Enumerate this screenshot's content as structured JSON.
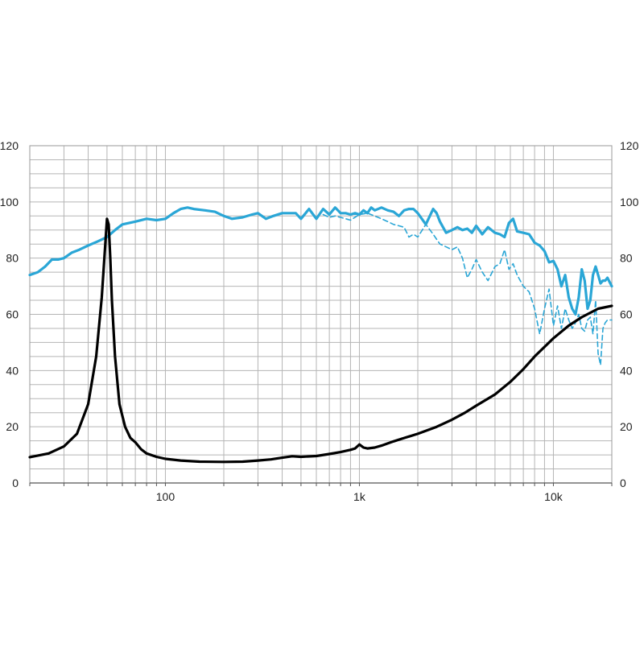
{
  "chart_data": {
    "type": "line",
    "x_scale": "log",
    "xlim": [
      20,
      20000
    ],
    "ylim_left": [
      0,
      120
    ],
    "ylim_right": [
      0,
      120
    ],
    "grid": true,
    "x_ticks": [
      100,
      1000,
      10000
    ],
    "x_tick_labels": [
      "100",
      "1k",
      "10k"
    ],
    "y_ticks": [
      0,
      20,
      40,
      60,
      80,
      100,
      120
    ],
    "y_tick_labels": [
      "0",
      "20",
      "40",
      "60",
      "80",
      "100",
      "120"
    ],
    "colors": {
      "spl": "#2aa6d6",
      "impedance": "#000000",
      "grid": "#b5b5b5"
    },
    "series": [
      {
        "key": "spl_on_axis",
        "style": "solid",
        "color": "#2aa6d6",
        "x": [
          20,
          22,
          24,
          26,
          28,
          30,
          33,
          36,
          40,
          45,
          50,
          55,
          60,
          70,
          80,
          90,
          100,
          110,
          120,
          130,
          140,
          160,
          180,
          200,
          220,
          250,
          280,
          300,
          330,
          360,
          400,
          430,
          470,
          500,
          550,
          600,
          650,
          700,
          750,
          800,
          850,
          900,
          950,
          1000,
          1050,
          1100,
          1150,
          1200,
          1300,
          1400,
          1500,
          1600,
          1700,
          1800,
          1900,
          2000,
          2200,
          2400,
          2500,
          2600,
          2800,
          3000,
          3200,
          3400,
          3600,
          3800,
          4000,
          4300,
          4600,
          5000,
          5300,
          5600,
          5900,
          6200,
          6500,
          7000,
          7500,
          8000,
          8500,
          9000,
          9500,
          10000,
          10500,
          11000,
          11500,
          12000,
          12500,
          13000,
          13500,
          14000,
          14500,
          15000,
          15500,
          16000,
          16500,
          17000,
          17500,
          18000,
          18500,
          19000,
          20000
        ],
        "y": [
          74,
          75,
          77,
          79.5,
          79.5,
          80,
          82,
          83,
          84.5,
          86,
          87.5,
          90,
          92,
          93,
          94,
          93.5,
          94,
          96,
          97.5,
          98,
          97.5,
          97,
          96.5,
          95,
          94,
          94.5,
          95.5,
          96,
          94,
          95,
          96,
          96,
          96,
          94,
          97.5,
          94,
          97.5,
          95.5,
          98,
          96,
          96,
          95.5,
          96,
          95.5,
          97,
          96,
          98,
          97,
          98,
          97,
          96.5,
          95,
          97,
          97.5,
          97.5,
          96,
          92,
          97.5,
          96,
          93,
          89,
          90,
          91,
          90,
          90.5,
          89,
          91.5,
          88.5,
          91,
          89,
          88.5,
          87.5,
          92.5,
          94,
          89.5,
          89,
          88.5,
          85.5,
          84.5,
          82.5,
          78.5,
          79,
          76,
          70,
          74,
          66,
          62,
          60,
          66,
          76,
          72,
          62,
          65,
          74,
          77,
          74,
          71,
          72,
          72,
          73,
          70
        ]
      },
      {
        "key": "spl_off_axis",
        "style": "dashed",
        "color": "#2aa6d6",
        "x": [
          650,
          700,
          750,
          800,
          900,
          1000,
          1100,
          1200,
          1300,
          1400,
          1500,
          1600,
          1700,
          1800,
          1900,
          2000,
          2200,
          2400,
          2600,
          2800,
          3000,
          3200,
          3400,
          3600,
          3800,
          4000,
          4300,
          4600,
          5000,
          5300,
          5600,
          5900,
          6200,
          6500,
          7000,
          7500,
          8000,
          8500,
          9000,
          9500,
          10000,
          10500,
          11000,
          11500,
          12000,
          12500,
          13000,
          13500,
          14000,
          14500,
          15000,
          15500,
          16000,
          16500,
          17000,
          17500,
          18000,
          18500,
          19000,
          20000
        ],
        "y": [
          95.5,
          94.5,
          95,
          94.5,
          93.5,
          95.5,
          96,
          95,
          94,
          93,
          92,
          91.5,
          91,
          87.5,
          88.5,
          87.5,
          92,
          88.5,
          85,
          84,
          83,
          84,
          80,
          73,
          76,
          79.5,
          75,
          72,
          77,
          78,
          83,
          76,
          78,
          74,
          70,
          68,
          62,
          53,
          62,
          69,
          56,
          63,
          55,
          62,
          58,
          55,
          57,
          60,
          55,
          54,
          58,
          59,
          53,
          65,
          46,
          42,
          55,
          57,
          58,
          58
        ]
      },
      {
        "key": "impedance",
        "style": "solid",
        "color": "#000000",
        "x": [
          20,
          25,
          30,
          35,
          40,
          44,
          47,
          49,
          50,
          51,
          52,
          53,
          55,
          58,
          62,
          66,
          70,
          75,
          80,
          90,
          100,
          120,
          150,
          200,
          250,
          300,
          350,
          400,
          450,
          500,
          600,
          700,
          800,
          900,
          950,
          1000,
          1050,
          1100,
          1200,
          1300,
          1500,
          1700,
          2000,
          2500,
          3000,
          3500,
          4000,
          5000,
          6000,
          7000,
          8000,
          10000,
          12000,
          14000,
          17000,
          20000
        ],
        "y": [
          9.2,
          10.5,
          13,
          17.5,
          28,
          45,
          66,
          85,
          94,
          92,
          80,
          65,
          45,
          28,
          20,
          16,
          14.5,
          12,
          10.5,
          9.3,
          8.6,
          8.0,
          7.6,
          7.5,
          7.6,
          8.0,
          8.4,
          9.0,
          9.5,
          9.3,
          9.6,
          10.3,
          11.0,
          11.8,
          12.3,
          13.7,
          12.6,
          12.3,
          12.6,
          13.3,
          14.8,
          16.0,
          17.5,
          20.0,
          22.5,
          25.0,
          27.5,
          31.5,
          36.0,
          40.5,
          45.0,
          51.5,
          56.0,
          59.0,
          62.0,
          63.0
        ]
      }
    ]
  }
}
